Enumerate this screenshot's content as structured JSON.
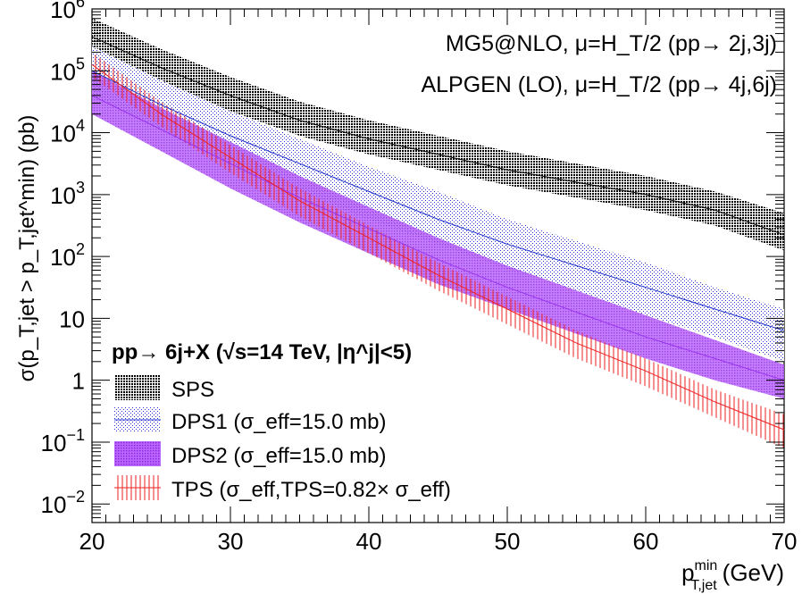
{
  "chart_data": {
    "type": "area",
    "title": "",
    "xlabel": "p_T,jet^min (GeV)",
    "xlabel_main": "p",
    "xlabel_sup": "min",
    "xlabel_sub": "T,jet",
    "xlabel_unit": "(GeV)",
    "ylabel": "σ(p_T,jet > p_T,jet^min) (pb)",
    "xlim": [
      20,
      70
    ],
    "ylim_log10": [
      -2.3,
      6.0
    ],
    "yscale": "log",
    "x_ticks": [
      20,
      30,
      40,
      50,
      60,
      70
    ],
    "x_tick_labels": [
      "20",
      "30",
      "40",
      "50",
      "60",
      "70"
    ],
    "y_ticks_log10": [
      -2,
      -1,
      0,
      1,
      2,
      3,
      4,
      5,
      6
    ],
    "y_tick_labels": [
      {
        "base": "10",
        "exp": "−2"
      },
      {
        "base": "10",
        "exp": "−1"
      },
      {
        "base": "1",
        "exp": ""
      },
      {
        "base": "10",
        "exp": ""
      },
      {
        "base": "10",
        "exp": "2"
      },
      {
        "base": "10",
        "exp": "3"
      },
      {
        "base": "10",
        "exp": "4"
      },
      {
        "base": "10",
        "exp": "5"
      },
      {
        "base": "10",
        "exp": "6"
      }
    ],
    "annotations": [
      "MG5@NLO, μ=H_T/2 (pp→ 2j,3j)",
      "ALPGEN (LO), μ=H_T/2 (pp→ 4j,6j)"
    ],
    "legend_title": "pp→ 6j+X (√s=14 TeV, |η^j|<5)",
    "legend_position": "bottom-left",
    "x": [
      20,
      25,
      30,
      35,
      40,
      45,
      50,
      55,
      60,
      65,
      70
    ],
    "series": [
      {
        "name": "SPS",
        "legend": "SPS",
        "color": "#000000",
        "central_log10": [
          5.55,
          5.05,
          4.6,
          4.2,
          3.9,
          3.65,
          3.4,
          3.2,
          3.0,
          2.75,
          2.35
        ],
        "upper_log10": [
          5.85,
          5.35,
          4.9,
          4.5,
          4.2,
          3.95,
          3.7,
          3.5,
          3.3,
          3.05,
          2.7
        ],
        "lower_log10": [
          5.3,
          4.8,
          4.35,
          3.95,
          3.65,
          3.4,
          3.15,
          2.95,
          2.75,
          2.5,
          2.1
        ]
      },
      {
        "name": "DPS1",
        "legend": "DPS1 (σ_eff=15.0 mb)",
        "color": "#2233cc",
        "central_log10": [
          5.0,
          4.45,
          3.95,
          3.5,
          3.05,
          2.6,
          2.2,
          1.85,
          1.5,
          1.15,
          0.8
        ],
        "upper_log10": [
          5.4,
          4.85,
          4.35,
          3.9,
          3.45,
          3.05,
          2.6,
          2.25,
          1.9,
          1.5,
          1.15
        ],
        "lower_log10": [
          4.6,
          4.05,
          3.5,
          3.05,
          2.6,
          2.2,
          1.8,
          1.45,
          1.05,
          0.7,
          0.3
        ]
      },
      {
        "name": "DPS2",
        "legend": "DPS2 (σ_eff=15.0 mb)",
        "color": "#9933ee",
        "central_log10": [
          4.6,
          4.05,
          3.5,
          2.95,
          2.45,
          1.95,
          1.5,
          1.1,
          0.7,
          0.35,
          0.0
        ],
        "upper_log10": [
          5.0,
          4.4,
          3.85,
          3.3,
          2.8,
          2.3,
          1.85,
          1.45,
          1.05,
          0.65,
          0.25
        ],
        "lower_log10": [
          4.3,
          3.7,
          3.1,
          2.55,
          2.05,
          1.55,
          1.15,
          0.75,
          0.35,
          0.0,
          -0.3
        ]
      },
      {
        "name": "TPS",
        "legend": "TPS (σ_eff,TPS=0.82× σ_eff)",
        "color": "#ee2222",
        "central_log10": [
          5.1,
          4.3,
          3.6,
          2.9,
          2.3,
          1.7,
          1.15,
          0.6,
          0.15,
          -0.35,
          -0.8
        ],
        "upper_log10": [
          5.3,
          4.5,
          3.8,
          3.1,
          2.5,
          1.9,
          1.35,
          0.8,
          0.35,
          -0.15,
          -0.55
        ],
        "lower_log10": [
          4.9,
          4.1,
          3.35,
          2.65,
          2.05,
          1.45,
          0.9,
          0.35,
          -0.1,
          -0.6,
          -1.1
        ]
      }
    ]
  }
}
